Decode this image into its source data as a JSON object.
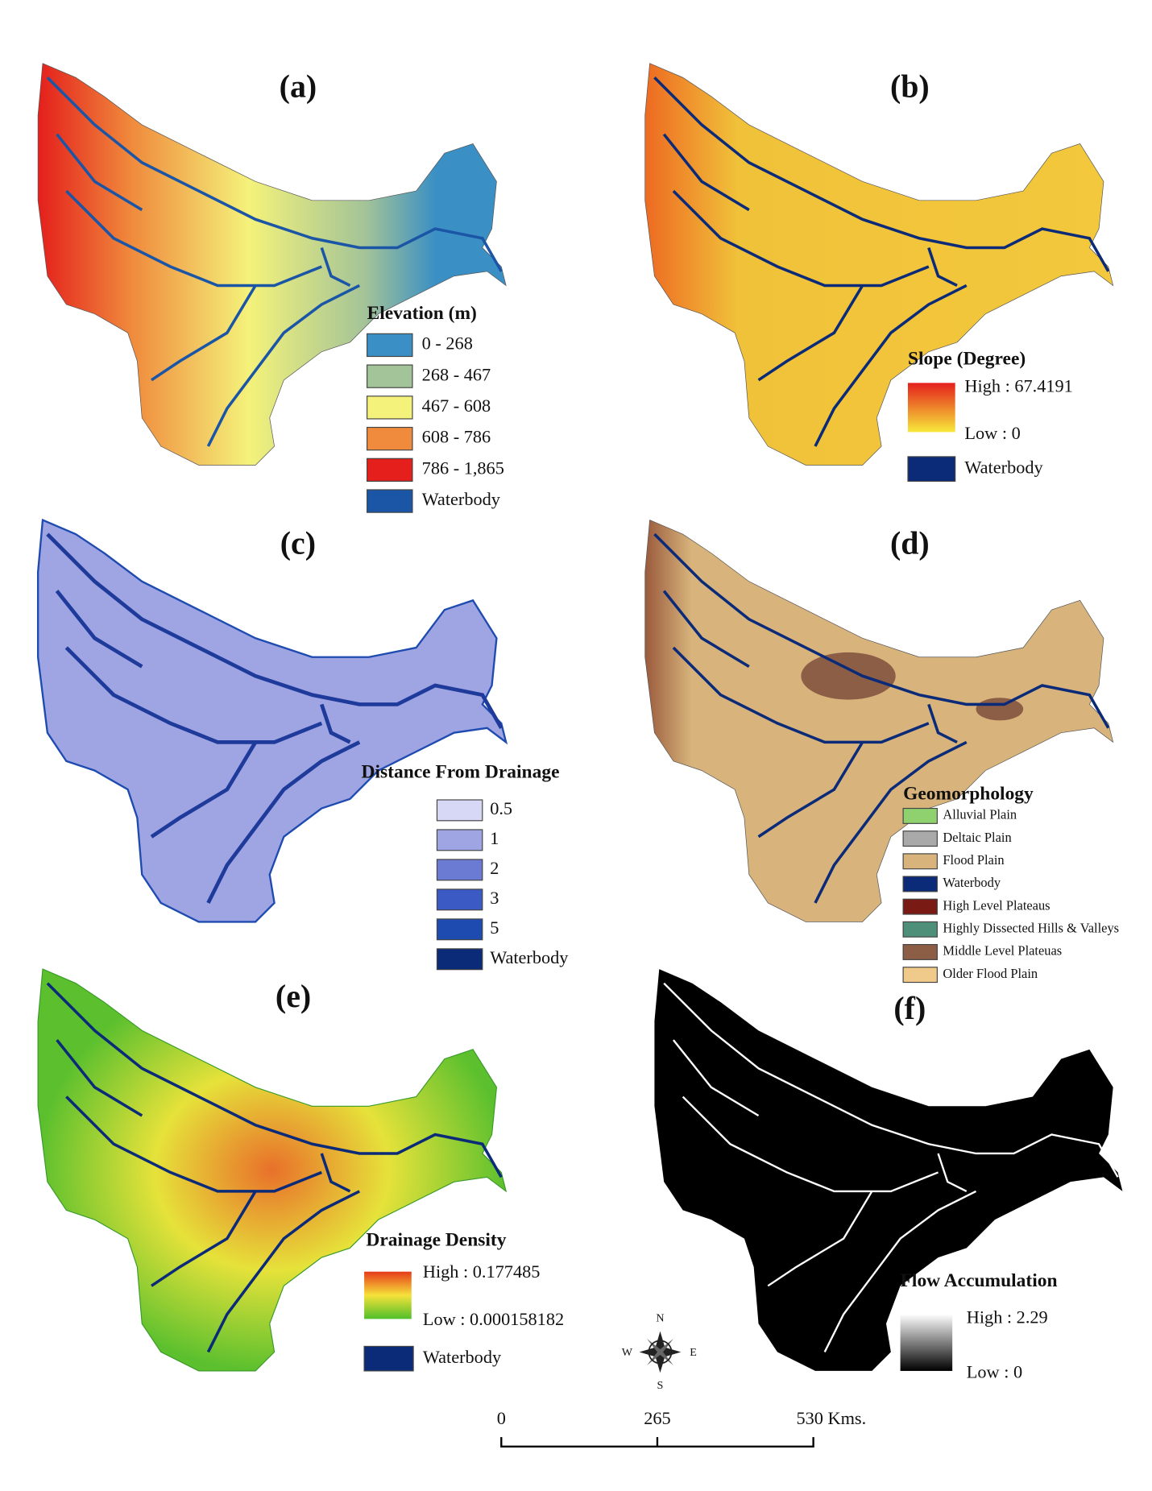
{
  "panels": [
    {
      "label": "(a)",
      "legend": {
        "title": "Elevation (m)",
        "items": [
          {
            "label": "0 - 268",
            "color": "#3a8fc4"
          },
          {
            "label": "268 - 467",
            "color": "#a3c398"
          },
          {
            "label": "467 - 608",
            "color": "#f4f27a"
          },
          {
            "label": "608 - 786",
            "color": "#f08a3c"
          },
          {
            "label": "786 - 1,865",
            "color": "#e41f1c"
          },
          {
            "label": "Waterbody",
            "color": "#1b55a6"
          }
        ]
      }
    },
    {
      "label": "(b)",
      "legend": {
        "title": "Slope (Degree)",
        "high": "High : 67.4191",
        "low": "Low : 0",
        "ramp": [
          "#e41f1c",
          "#f7e93a"
        ],
        "items": [
          {
            "label": "Waterbody",
            "color": "#0b2a78"
          }
        ]
      }
    },
    {
      "label": "(c)",
      "legend": {
        "title": "Distance From Drainage",
        "items": [
          {
            "label": "0.5",
            "color": "#d6d8f5"
          },
          {
            "label": "1",
            "color": "#9fa4e2"
          },
          {
            "label": "2",
            "color": "#6b7ad2"
          },
          {
            "label": "3",
            "color": "#3b5ac4"
          },
          {
            "label": "5",
            "color": "#1e4bb0"
          },
          {
            "label": "Waterbody",
            "color": "#0b2a78"
          }
        ]
      }
    },
    {
      "label": "(d)",
      "legend": {
        "title": "Geomorphology",
        "items": [
          {
            "label": "Alluvial Plain",
            "color": "#8fd16e"
          },
          {
            "label": "Deltaic Plain",
            "color": "#a9a9a9"
          },
          {
            "label": "Flood Plain",
            "color": "#d8b47c"
          },
          {
            "label": "Waterbody",
            "color": "#0b2a78"
          },
          {
            "label": "High Level Plateaus",
            "color": "#7a1a14"
          },
          {
            "label": "Highly Dissected Hills & Valleys",
            "color": "#4e8f7a"
          },
          {
            "label": "Middle Level Plateuas",
            "color": "#8c5e45"
          },
          {
            "label": "Older Flood Plain",
            "color": "#f0ca8a"
          }
        ]
      }
    },
    {
      "label": "(e)",
      "legend": {
        "title": "Drainage Density",
        "high": "High : 0.177485",
        "low": "Low : 0.000158182",
        "ramp": [
          "#e63a1a",
          "#f6e23a",
          "#4fbf2a"
        ],
        "items": [
          {
            "label": "Waterbody",
            "color": "#0b2a78"
          }
        ]
      }
    },
    {
      "label": "(f)",
      "legend": {
        "title": "Flow Accumulation",
        "high": "High : 2.29",
        "low": "Low : 0",
        "ramp": [
          "#ffffff",
          "#000000"
        ],
        "items": []
      }
    }
  ],
  "compass": {
    "n": "N",
    "s": "S",
    "e": "E",
    "w": "W"
  },
  "scale_bar": {
    "ticks": [
      "0",
      "265",
      "530 Kms."
    ]
  }
}
